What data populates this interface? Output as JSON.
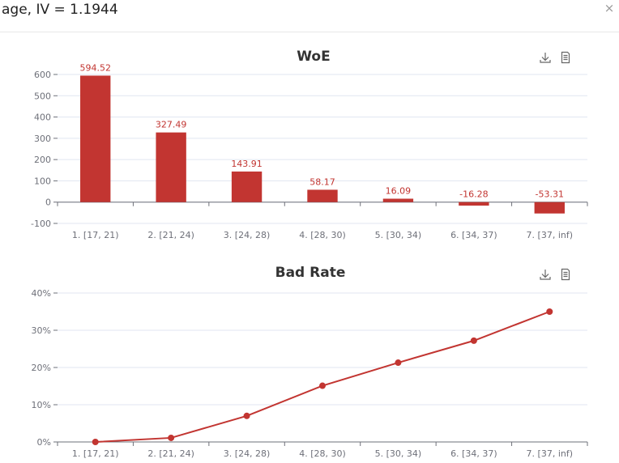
{
  "modal": {
    "title": "age, IV = 1.1944",
    "close_label": "×"
  },
  "colors": {
    "series": "#c23531",
    "axis": "#6e7079",
    "grid": "#e0e6f1",
    "label": "#c23531"
  },
  "chart_data": [
    {
      "type": "bar",
      "title": "WoE",
      "categories": [
        "1. [17, 21)",
        "2. [21, 24)",
        "3. [24, 28)",
        "4. [28, 30)",
        "5. [30, 34)",
        "6. [34, 37)",
        "7. [37, inf)"
      ],
      "values": [
        594.52,
        327.49,
        143.91,
        58.17,
        16.09,
        -16.28,
        -53.31
      ],
      "data_labels": [
        "594.52",
        "327.49",
        "143.91",
        "58.17",
        "16.09",
        "-16.28",
        "-53.31"
      ],
      "ylim": [
        -100,
        600
      ],
      "yticks": [
        -100,
        0,
        100,
        200,
        300,
        400,
        500,
        600
      ],
      "ytick_labels": [
        "-100",
        "0",
        "100",
        "200",
        "300",
        "400",
        "500",
        "600"
      ],
      "grid": true,
      "toolbox": [
        "download-icon",
        "data-view-icon"
      ]
    },
    {
      "type": "line",
      "title": "Bad Rate",
      "categories": [
        "1. [17, 21)",
        "2. [21, 24)",
        "3. [24, 28)",
        "4. [28, 30)",
        "5. [30, 34)",
        "6. [34, 37)",
        "7. [37, inf)"
      ],
      "values": [
        0.0,
        0.011,
        0.07,
        0.151,
        0.213,
        0.272,
        0.35
      ],
      "ylim": [
        0,
        0.4
      ],
      "yticks": [
        0,
        0.1,
        0.2,
        0.3,
        0.4
      ],
      "ytick_labels": [
        "0%",
        "10%",
        "20%",
        "30%",
        "40%"
      ],
      "grid": true,
      "toolbox": [
        "download-icon",
        "data-view-icon"
      ]
    }
  ]
}
